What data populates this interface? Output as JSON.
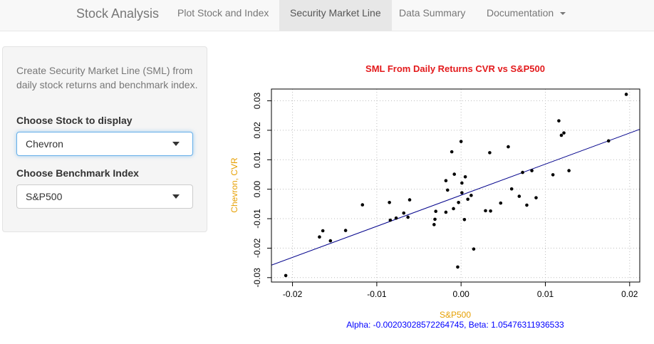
{
  "navbar": {
    "brand": "Stock Analysis",
    "tabs": [
      {
        "label": "Plot Stock and Index"
      },
      {
        "label": "Security Market Line"
      },
      {
        "label": "Data Summary"
      },
      {
        "label": "Documentation"
      }
    ]
  },
  "sidebar": {
    "description": "Create Security Market Line (SML) from daily stock returns and benchmark index.",
    "stock_label": "Choose Stock to display",
    "stock_value": "Chevron",
    "index_label": "Choose Benchmark Index",
    "index_value": "S&P500"
  },
  "colors": {
    "title": "#e31a1c",
    "axis_label": "#e69f00",
    "regression_line": "#00008b",
    "subtitle": "#0000ff",
    "points": "#000000"
  },
  "chart_data": {
    "type": "scatter",
    "title": "SML From Daily Returns CVR vs S&P500",
    "xlabel": "S&P500",
    "ylabel": "Chevron, CVR",
    "subtitle": "Alpha: -0.00203028572264745, Beta: 1.05476311936533",
    "xlim": [
      -0.0225,
      0.0212
    ],
    "ylim": [
      -0.0315,
      0.034
    ],
    "xticks": [
      -0.02,
      -0.01,
      0.0,
      0.01,
      0.02
    ],
    "xtick_labels": [
      "-0.02",
      "-0.01",
      "0.00",
      "0.01",
      "0.02"
    ],
    "yticks": [
      -0.03,
      -0.02,
      -0.01,
      0.0,
      0.01,
      0.02,
      0.03
    ],
    "ytick_labels": [
      "-0.03",
      "-0.02",
      "-0.01",
      "0.00",
      "0.01",
      "0.02",
      "0.03"
    ],
    "grid": true,
    "regression": {
      "alpha": -0.00203028572264745,
      "beta": 1.05476311936533
    },
    "points": [
      [
        -0.0208,
        -0.0293
      ],
      [
        -0.0168,
        -0.0162
      ],
      [
        -0.0164,
        -0.0141
      ],
      [
        -0.0155,
        -0.0175
      ],
      [
        -0.0137,
        -0.014
      ],
      [
        -0.0117,
        -0.0053
      ],
      [
        -0.0085,
        -0.0045
      ],
      [
        -0.0084,
        -0.0105
      ],
      [
        -0.0077,
        -0.0098
      ],
      [
        -0.0068,
        -0.0081
      ],
      [
        -0.0063,
        -0.0095
      ],
      [
        -0.0061,
        -0.0036
      ],
      [
        -0.0032,
        -0.012
      ],
      [
        -0.0031,
        -0.0102
      ],
      [
        -0.003,
        -0.0075
      ],
      [
        -0.0018,
        -0.0078
      ],
      [
        -0.0018,
        0.0029
      ],
      [
        -0.0016,
        -0.0003
      ],
      [
        -0.0011,
        0.0127
      ],
      [
        -0.0009,
        -0.0066
      ],
      [
        -0.0008,
        0.0051
      ],
      [
        -0.0004,
        -0.0264
      ],
      [
        -0.0003,
        -0.0045
      ],
      [
        0.0,
        0.0162
      ],
      [
        0.0001,
        0.0021
      ],
      [
        0.0001,
        -0.0012
      ],
      [
        0.0004,
        -0.0103
      ],
      [
        0.0005,
        0.0042
      ],
      [
        0.0008,
        -0.0034
      ],
      [
        0.0012,
        -0.0021
      ],
      [
        0.0015,
        -0.0203
      ],
      [
        0.0029,
        -0.0073
      ],
      [
        0.0034,
        0.0124
      ],
      [
        0.0035,
        -0.0074
      ],
      [
        0.0047,
        -0.0047
      ],
      [
        0.0056,
        0.0144
      ],
      [
        0.006,
        0.0001
      ],
      [
        0.0069,
        -0.0024
      ],
      [
        0.0073,
        0.0057
      ],
      [
        0.0078,
        -0.0054
      ],
      [
        0.0084,
        0.0063
      ],
      [
        0.0089,
        -0.0029
      ],
      [
        0.0109,
        0.0049
      ],
      [
        0.0116,
        0.0232
      ],
      [
        0.0119,
        0.0183
      ],
      [
        0.0122,
        0.0191
      ],
      [
        0.0128,
        0.0063
      ],
      [
        0.0175,
        0.0164
      ],
      [
        0.0196,
        0.0322
      ]
    ]
  }
}
